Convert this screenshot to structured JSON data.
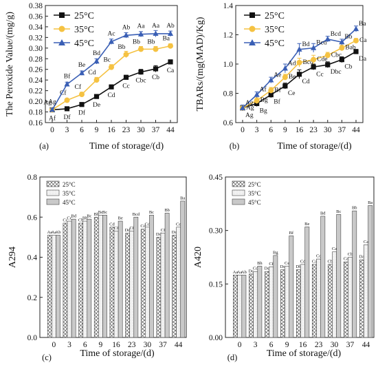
{
  "chart_data": [
    {
      "panel_label": "(a)",
      "type": "line",
      "xlabel": "Time of storage/(d)",
      "ylabel": "The Peroxide Value/(mg/g)",
      "x": [
        0,
        3,
        6,
        9,
        16,
        23,
        30,
        37,
        44
      ],
      "xticks": [
        "0",
        "3",
        "6",
        "9",
        "16",
        "23",
        "30",
        "37",
        "44"
      ],
      "ylim": [
        0.16,
        0.38
      ],
      "yticks": [
        "0.16",
        "0.18",
        "0.20",
        "0.22",
        "0.24",
        "0.26",
        "0.28",
        "0.30",
        "0.32",
        "0.34",
        "0.36",
        "0.38"
      ],
      "legend_position": "top-left",
      "series": [
        {
          "name": "25°C",
          "color": "#111111",
          "marker": "square",
          "values": [
            0.184,
            0.186,
            0.194,
            0.209,
            0.227,
            0.245,
            0.255,
            0.261,
            0.274
          ],
          "errors": [
            0.003,
            0.003,
            0.003,
            0.004,
            0.004,
            0.004,
            0.005,
            0.006,
            0.004
          ],
          "labels": [
            "Af",
            "Df",
            "Df",
            "De",
            "Cd",
            "Cc",
            "Cbc",
            "Cb",
            "Ca"
          ],
          "label_side": "below"
        },
        {
          "name": "35°C",
          "color": "#f5c242",
          "marker": "circle",
          "values": [
            0.184,
            0.202,
            0.213,
            0.24,
            0.264,
            0.288,
            0.298,
            0.298,
            0.304
          ],
          "errors": [
            0.003,
            0.003,
            0.004,
            0.005,
            0.005,
            0.006,
            0.005,
            0.005,
            0.004
          ],
          "labels": [
            "Ag",
            "Cf",
            "Cf",
            "Cd",
            "Bc",
            "Bb",
            "Bb",
            "Bb",
            "Ba"
          ],
          "label_side": "between"
        },
        {
          "name": "45°C",
          "color": "#3a5fb5",
          "marker": "triangle",
          "values": [
            0.184,
            0.232,
            0.253,
            0.275,
            0.312,
            0.324,
            0.326,
            0.327,
            0.327
          ],
          "errors": [
            0.003,
            0.004,
            0.004,
            0.005,
            0.005,
            0.005,
            0.005,
            0.006,
            0.005
          ],
          "labels": [
            "Ag",
            "Bf",
            "Be",
            "Bd",
            "Ac",
            "Ab",
            "Aa",
            "Aa",
            "Ab"
          ],
          "label_side": "above"
        }
      ]
    },
    {
      "panel_label": "(b)",
      "type": "line",
      "xlabel": "Time of storage/(d)",
      "ylabel": "TBARs/(mg(MAD)/Kg)",
      "x": [
        0,
        3,
        6,
        9,
        16,
        23,
        30,
        37,
        44
      ],
      "xticks": [
        "0",
        "3",
        "6",
        "9",
        "16",
        "23",
        "30",
        "37",
        "44"
      ],
      "ylim": [
        0.6,
        1.4
      ],
      "yticks": [
        "0.6",
        "0.8",
        "1.0",
        "1.2",
        "1.4"
      ],
      "legend_position": "top-left",
      "series": [
        {
          "name": "25°C",
          "color": "#111111",
          "marker": "square",
          "values": [
            0.7,
            0.73,
            0.79,
            0.85,
            0.93,
            0.98,
            0.995,
            1.03,
            1.085
          ],
          "errors": [
            0.02,
            0.02,
            0.02,
            0.02,
            0.03,
            0.02,
            0.02,
            0.02,
            0.015
          ],
          "labels": [
            "Ag",
            "Bg",
            "Bf",
            "Ce",
            "Cd",
            "Cc",
            "Dbc",
            "Cb",
            "Da"
          ],
          "label_side": "right-below"
        },
        {
          "name": "35°C",
          "color": "#f5c242",
          "marker": "circle",
          "values": [
            0.7,
            0.75,
            0.82,
            0.91,
            1.01,
            1.03,
            1.06,
            1.11,
            1.16
          ],
          "errors": [
            0.02,
            0.02,
            0.02,
            0.02,
            0.03,
            0.03,
            0.02,
            0.02,
            0.015
          ],
          "labels": [
            "Ag",
            "Bg",
            "Bf",
            "Be",
            "Bcd",
            "Cde",
            "Cbc",
            "Bab",
            "Ca"
          ],
          "label_side": "right"
        },
        {
          "name": "45°C",
          "color": "#3a5fb5",
          "marker": "triangle",
          "values": [
            0.7,
            0.79,
            0.89,
            0.97,
            1.1,
            1.11,
            1.17,
            1.15,
            1.24
          ],
          "errors": [
            0.02,
            0.02,
            0.02,
            0.03,
            0.04,
            0.03,
            0.02,
            0.02,
            0.02
          ],
          "labels": [
            "Ag",
            "Af",
            "Ae",
            "Ad",
            "Bd",
            "Bcd",
            "Bcd",
            "Bb",
            "Ba"
          ],
          "label_side": "right-above"
        }
      ]
    },
    {
      "panel_label": "(c)",
      "type": "bar",
      "xlabel": "Time of storage/(d)",
      "ylabel": "A294",
      "categories": [
        "0",
        "3",
        "6",
        "9",
        "16",
        "23",
        "30",
        "37",
        "44"
      ],
      "ylim": [
        0.0,
        0.8
      ],
      "yticks": [
        "0.0",
        "0.2",
        "0.4",
        "0.6",
        "0.8"
      ],
      "legend_position": "top-left",
      "series": [
        {
          "name": "25°C",
          "pattern": "crosshatch",
          "values": [
            0.51,
            0.57,
            0.57,
            0.6,
            0.55,
            0.52,
            0.54,
            0.5,
            0.51
          ],
          "labels": [
            "Aa",
            "Cc",
            "Cb",
            "Bb",
            "Cd",
            "Dd",
            "Cd",
            "Dd",
            "Dc"
          ]
        },
        {
          "name": "35°C",
          "pattern": "light",
          "values": [
            0.51,
            0.58,
            0.58,
            0.61,
            0.53,
            0.53,
            0.55,
            0.52,
            0.55
          ],
          "labels": [
            "Aa",
            "Cc",
            "Bb",
            "Bc",
            "Cf",
            "Cf",
            "Cd",
            "Cf",
            "Ce"
          ]
        },
        {
          "name": "45°C",
          "pattern": "gray",
          "values": [
            0.51,
            0.59,
            0.59,
            0.61,
            0.58,
            0.6,
            0.61,
            0.62,
            0.68
          ],
          "labels": [
            "Ab",
            "Bd",
            "Bc",
            "Bc",
            "Be",
            "Bcd",
            "Bc",
            "Bb",
            "Ba"
          ]
        }
      ]
    },
    {
      "panel_label": "(d)",
      "type": "bar",
      "xlabel": "Time of storage/(d)",
      "ylabel": "A420",
      "categories": [
        "0",
        "3",
        "6",
        "9",
        "16",
        "23",
        "30",
        "37",
        "44"
      ],
      "ylim": [
        0.0,
        0.45
      ],
      "yticks": [
        "0.00",
        "0.15",
        "0.30",
        "0.45"
      ],
      "legend_position": "top-left",
      "series": [
        {
          "name": "25°C",
          "pattern": "crosshatch",
          "values": [
            0.175,
            0.178,
            0.185,
            0.19,
            0.19,
            0.205,
            0.205,
            0.212,
            0.218
          ],
          "labels": [
            "Aa",
            "Dc",
            "Dc",
            "Dc",
            "Db",
            "Ca",
            "Cb",
            "Ca",
            "Da"
          ]
        },
        {
          "name": "35°C",
          "pattern": "light",
          "values": [
            0.175,
            0.185,
            0.198,
            0.2,
            0.205,
            0.22,
            0.24,
            0.225,
            0.26
          ],
          "labels": [
            "Aa",
            "Cd",
            "Cf",
            "Ce",
            "Cd",
            "Cc",
            "Ca",
            "Cb",
            "Ca"
          ]
        },
        {
          "name": "45°C",
          "pattern": "gray",
          "values": [
            0.175,
            0.2,
            0.23,
            0.285,
            0.31,
            0.34,
            0.345,
            0.355,
            0.37
          ],
          "labels": [
            "Ab",
            "Bh",
            "Bg",
            "Bf",
            "Be",
            "Bd",
            "Bc",
            "Bb",
            "Ba"
          ]
        }
      ]
    }
  ]
}
